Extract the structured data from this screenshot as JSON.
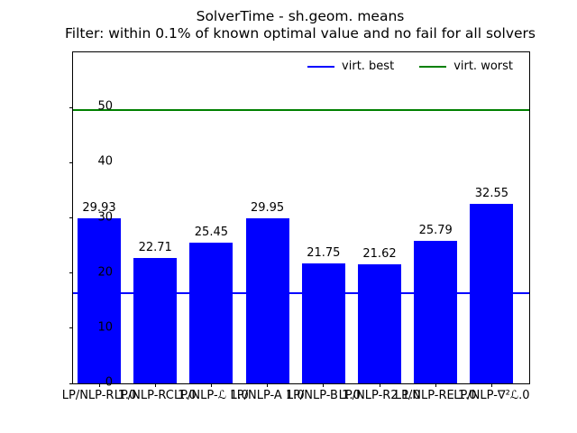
{
  "figure": {
    "title": "SolverTime - sh.geom. means",
    "subtitle": "Filter: within 0.1% of known optimal value and no fail for all solvers"
  },
  "chart_data": {
    "type": "bar",
    "title": "SolverTime - sh.geom. means",
    "subtitle": "Filter: within 0.1% of known optimal value and no fail for all solvers",
    "categories": [
      "LP/NLP-R 1.0",
      "LP/NLP-RC 1.0",
      "LP/NLP-ℒ 1.0",
      "LP/NLP-A 1.0",
      "LP/NLP-B 1.0",
      "LP/NLP-R2 1.0",
      "LP/NLP-RE 1.0",
      "LP/NLP-∇²ℒ.0"
    ],
    "values": [
      29.93,
      22.71,
      25.45,
      29.95,
      21.75,
      21.62,
      25.79,
      32.55
    ],
    "value_labels": [
      "29.93",
      "22.71",
      "25.45",
      "29.95",
      "21.75",
      "21.62",
      "25.79",
      "32.55"
    ],
    "bar_color": "#0000ff",
    "xlabel": "",
    "ylabel": "",
    "yticks": [
      0,
      10,
      20,
      30,
      40,
      50
    ],
    "ylim": [
      0,
      60
    ],
    "grid": false,
    "hlines": [
      {
        "label": "virt. best",
        "value": 16.3,
        "color": "#0000ff"
      },
      {
        "label": "virt. worst",
        "value": 49.6,
        "color": "#008000"
      }
    ],
    "legend": {
      "position": "upper right",
      "entries": [
        "virt. best",
        "virt. worst"
      ]
    }
  }
}
